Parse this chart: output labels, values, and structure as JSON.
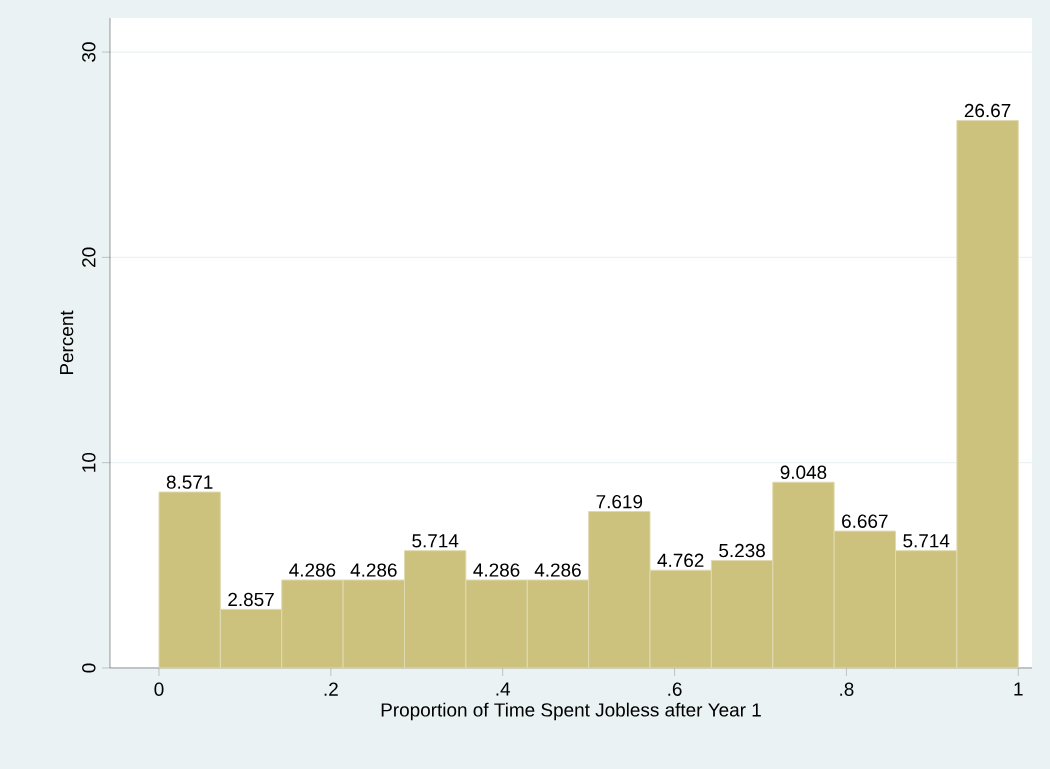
{
  "chart_data": {
    "type": "histogram",
    "xlabel": "Proportion of Time Spent Jobless after Year 1",
    "ylabel": "Percent",
    "bins": [
      0,
      0.0714286,
      0.1428571,
      0.2142857,
      0.2857143,
      0.3571429,
      0.4285714,
      0.5,
      0.5714286,
      0.6428571,
      0.7142857,
      0.7857143,
      0.8571429,
      0.9285714,
      1
    ],
    "values": [
      8.571,
      2.857,
      4.286,
      4.286,
      5.714,
      4.286,
      4.286,
      7.619,
      4.762,
      5.238,
      9.048,
      6.667,
      5.714,
      26.67
    ],
    "color": "#ccc27e",
    "data_labels": true,
    "xlim": [
      -0.057,
      1.016
    ],
    "ylim": [
      0,
      31.66
    ],
    "xticks": [
      0,
      {
        "value": 0.2,
        "label": ".2"
      },
      {
        "value": 0.4,
        "label": ".4"
      },
      {
        "value": 0.6,
        "label": ".6"
      },
      {
        "value": 0.8,
        "label": ".8"
      },
      1
    ],
    "yticks": [
      0,
      10,
      20,
      30
    ],
    "grid": "y"
  }
}
